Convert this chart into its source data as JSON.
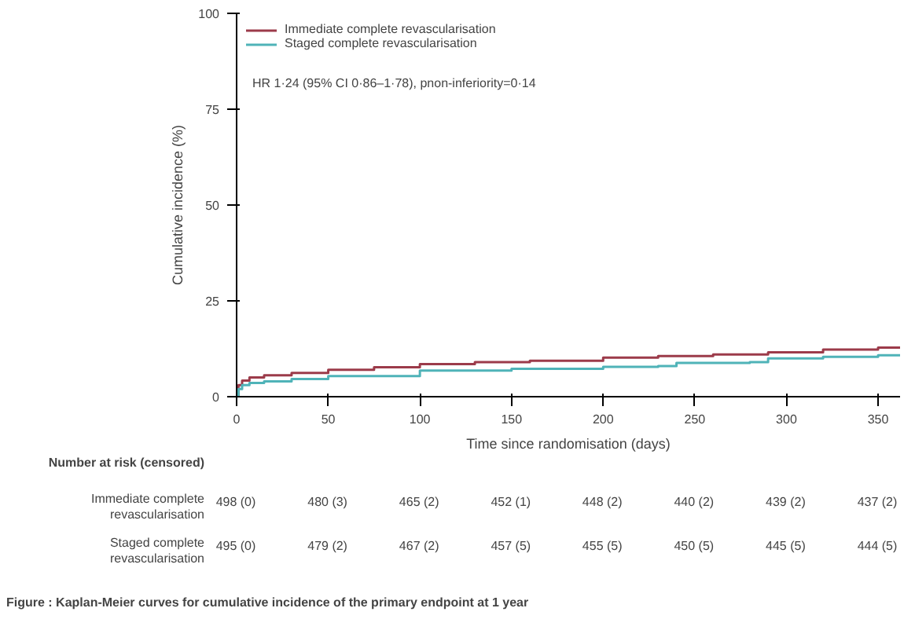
{
  "chart_data": {
    "type": "step",
    "xlabel": "Time since randomisation (days)",
    "ylabel": "Cumulative incidence (%)",
    "xlim": [
      0,
      362
    ],
    "xticks": [
      0,
      50,
      100,
      150,
      200,
      250,
      300,
      350
    ],
    "ylim": [
      0,
      100
    ],
    "yticks": [
      0,
      25,
      50,
      75,
      100
    ],
    "grid": false,
    "legend": "top left",
    "series": [
      {
        "name": "Immediate complete revascularisation",
        "color": "#9c3b4a",
        "x": [
          0,
          1,
          3,
          7,
          15,
          30,
          50,
          75,
          100,
          130,
          160,
          200,
          230,
          260,
          290,
          320,
          350,
          362
        ],
        "values": [
          0,
          3.0,
          4.2,
          5.0,
          5.6,
          6.2,
          7.0,
          7.7,
          8.5,
          9.0,
          9.4,
          10.2,
          10.6,
          11.0,
          11.6,
          12.3,
          12.8,
          13.0
        ]
      },
      {
        "name": "Staged complete revascularisation",
        "color": "#4fb3b8",
        "x": [
          0,
          1,
          3,
          7,
          15,
          30,
          50,
          100,
          150,
          200,
          230,
          240,
          280,
          290,
          320,
          350,
          362
        ],
        "values": [
          0,
          2.0,
          3.0,
          3.6,
          4.0,
          4.6,
          5.4,
          6.8,
          7.3,
          7.8,
          8.0,
          8.8,
          9.0,
          10.0,
          10.4,
          10.8,
          11.0
        ]
      }
    ],
    "annotations": [
      "HR 1·24 (95% CI 0·86–1·78), pnon-inferiority=0·14",
      "Number at risk (censored)",
      "Immediate complete revascularisation",
      "498 (0)",
      "480 (3)",
      "465 (2)",
      "452 (1)",
      "448 (2)",
      "440 (2)",
      "439 (2)",
      "437 (2)",
      "Staged complete revascularisation",
      "495 (0)",
      "479 (2)",
      "467 (2)",
      "457 (5)",
      "455 (5)",
      "450 (5)",
      "445 (5)",
      "444 (5)",
      "Figure  : Kaplan-Meier curves for cumulative incidence of the primary endpoint at 1 year"
    ]
  }
}
